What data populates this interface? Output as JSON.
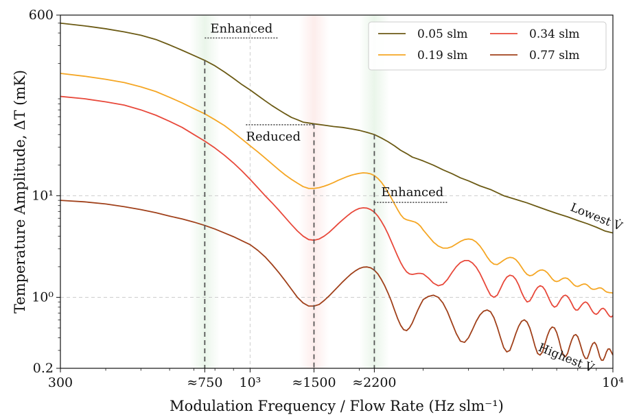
{
  "chart_data": {
    "type": "line",
    "title": "",
    "xlabel": "Modulation Frequency / Flow Rate (Hz slm⁻¹)",
    "ylabel": "Temperature Amplitude, ΔT (mK)",
    "xscale": "log",
    "yscale": "log",
    "xlim": [
      300,
      10000
    ],
    "ylim": [
      0.2,
      600
    ],
    "xticks": [
      {
        "value": 300,
        "label": "300"
      },
      {
        "value": 750,
        "label": "≈750"
      },
      {
        "value": 1000,
        "label": "10³"
      },
      {
        "value": 1500,
        "label": "≈1500"
      },
      {
        "value": 2200,
        "label": "≈2200"
      },
      {
        "value": 10000,
        "label": "10⁴"
      }
    ],
    "yticks": [
      {
        "value": 0.2,
        "label": "0.2"
      },
      {
        "value": 1,
        "label": "10⁰"
      },
      {
        "value": 10,
        "label": "10¹"
      },
      {
        "value": 600,
        "label": "600"
      }
    ],
    "grid": true,
    "legend_position": "top-right",
    "series": [
      {
        "name": "0.05 slm",
        "color": "#6b5a14",
        "x": [
          300,
          350,
          400,
          450,
          500,
          550,
          600,
          650,
          700,
          750,
          800,
          850,
          900,
          950,
          1000,
          1050,
          1100,
          1150,
          1200,
          1250,
          1300,
          1350,
          1400,
          1450,
          1500,
          1600,
          1700,
          1800,
          1900,
          2000,
          2100,
          2200,
          2300,
          2400,
          2500,
          2600,
          2700,
          2800,
          2900,
          3000,
          3200,
          3400,
          3600,
          3800,
          4000,
          4300,
          4600,
          5000,
          5400,
          5800,
          6200,
          6600,
          7000,
          7500,
          8000,
          8500,
          9000,
          9500,
          10000
        ],
        "y": [
          500,
          470,
          440,
          410,
          380,
          345,
          305,
          270,
          240,
          215,
          190,
          165,
          143,
          124,
          110,
          97,
          86,
          77,
          70,
          64,
          59,
          56,
          53,
          52,
          51,
          49.5,
          48,
          47,
          45.5,
          44,
          42,
          40,
          37,
          34,
          31,
          28,
          26,
          24,
          23,
          22,
          20,
          18,
          16.5,
          15,
          14,
          12.5,
          11.5,
          10,
          9.2,
          8.5,
          7.8,
          7.2,
          6.7,
          6.2,
          5.7,
          5.3,
          4.9,
          4.5,
          4.3
        ]
      },
      {
        "name": "0.19 slm",
        "color": "#f5a623",
        "x": [
          300,
          350,
          400,
          450,
          500,
          550,
          600,
          650,
          700,
          750,
          800,
          850,
          900,
          950,
          1000,
          1050,
          1100,
          1150,
          1200,
          1250,
          1300,
          1350,
          1400,
          1450,
          1500,
          1550,
          1600,
          1650,
          1700,
          1750,
          1800,
          1850,
          1900,
          1950,
          2000,
          2050,
          2100,
          2150,
          2200,
          2250,
          2300,
          2350,
          2400,
          2450,
          2500,
          2550,
          2600,
          2650,
          2700,
          2750,
          2800,
          2850,
          2900,
          2950,
          3000,
          3100,
          3200,
          3300,
          3400,
          3500,
          3600,
          3700,
          3800,
          3900,
          4000,
          4100,
          4200,
          4300,
          4400,
          4500,
          4600,
          4700,
          4800,
          4900,
          5000,
          5100,
          5200,
          5300,
          5400,
          5500,
          5600,
          5700,
          5800,
          5900,
          6000,
          6100,
          6200,
          6300,
          6400,
          6500,
          6600,
          6700,
          6800,
          6900,
          7000,
          7100,
          7200,
          7300,
          7400,
          7500,
          7600,
          7700,
          7800,
          7900,
          8000,
          8100,
          8200,
          8300,
          8400,
          8500,
          8600,
          8700,
          8800,
          8900,
          9000,
          9100,
          9200,
          9300,
          9400,
          9500,
          9600,
          9700,
          9800,
          9900,
          10000
        ],
        "y": [
          160,
          150,
          140,
          130,
          118,
          106,
          93,
          82,
          72,
          64,
          56,
          49,
          42,
          36,
          31,
          27,
          23.5,
          20.5,
          18,
          16,
          14.5,
          13.3,
          12.3,
          11.8,
          11.8,
          12.0,
          12.4,
          12.9,
          13.5,
          14.2,
          14.8,
          15.4,
          15.9,
          16.3,
          16.6,
          16.8,
          16.7,
          16.4,
          15.8,
          14.8,
          13.6,
          12.2,
          10.8,
          9.5,
          8.3,
          7.3,
          6.5,
          6.0,
          5.8,
          5.7,
          5.6,
          5.5,
          5.3,
          5.0,
          4.6,
          4.0,
          3.5,
          3.2,
          3.05,
          3.05,
          3.15,
          3.35,
          3.55,
          3.7,
          3.75,
          3.7,
          3.5,
          3.2,
          2.85,
          2.5,
          2.25,
          2.12,
          2.1,
          2.2,
          2.32,
          2.42,
          2.47,
          2.45,
          2.35,
          2.18,
          1.98,
          1.8,
          1.68,
          1.63,
          1.65,
          1.72,
          1.8,
          1.85,
          1.86,
          1.82,
          1.74,
          1.63,
          1.52,
          1.45,
          1.43,
          1.45,
          1.5,
          1.54,
          1.55,
          1.53,
          1.47,
          1.4,
          1.33,
          1.29,
          1.28,
          1.3,
          1.33,
          1.35,
          1.35,
          1.32,
          1.27,
          1.22,
          1.2,
          1.2,
          1.21,
          1.23,
          1.24,
          1.23,
          1.2,
          1.16,
          1.13,
          1.12,
          1.11,
          1.11,
          1.1
        ]
      },
      {
        "name": "0.34 slm",
        "color": "#e8483a",
        "x": [
          300,
          350,
          400,
          450,
          500,
          550,
          600,
          650,
          700,
          750,
          800,
          850,
          900,
          950,
          1000,
          1050,
          1100,
          1150,
          1200,
          1250,
          1300,
          1350,
          1400,
          1450,
          1500,
          1550,
          1600,
          1650,
          1700,
          1750,
          1800,
          1850,
          1900,
          1950,
          2000,
          2050,
          2100,
          2150,
          2200,
          2250,
          2300,
          2350,
          2400,
          2450,
          2500,
          2550,
          2600,
          2650,
          2700,
          2750,
          2800,
          2850,
          2900,
          2950,
          3000,
          3100,
          3200,
          3300,
          3400,
          3500,
          3600,
          3700,
          3800,
          3900,
          4000,
          4100,
          4200,
          4300,
          4400,
          4500,
          4600,
          4700,
          4800,
          4900,
          5000,
          5100,
          5200,
          5300,
          5400,
          5500,
          5600,
          5700,
          5800,
          5900,
          6000,
          6100,
          6200,
          6300,
          6400,
          6500,
          6600,
          6700,
          6800,
          6900,
          7000,
          7100,
          7200,
          7300,
          7400,
          7500,
          7600,
          7700,
          7800,
          7900,
          8000,
          8100,
          8200,
          8300,
          8400,
          8500,
          8600,
          8700,
          8800,
          8900,
          9000,
          9100,
          9200,
          9300,
          9400,
          9500,
          9600,
          9700,
          9800,
          9900,
          10000
        ],
        "y": [
          95,
          90,
          84,
          78,
          70,
          62,
          54,
          47,
          40,
          34.5,
          29.5,
          25,
          21,
          17.5,
          14.5,
          12,
          10,
          8.5,
          7.2,
          6.1,
          5.2,
          4.5,
          4.0,
          3.7,
          3.65,
          3.75,
          4.0,
          4.35,
          4.8,
          5.3,
          5.8,
          6.3,
          6.8,
          7.2,
          7.5,
          7.6,
          7.55,
          7.3,
          6.9,
          6.3,
          5.6,
          4.9,
          4.2,
          3.55,
          3.0,
          2.55,
          2.2,
          1.95,
          1.78,
          1.7,
          1.68,
          1.7,
          1.72,
          1.72,
          1.7,
          1.55,
          1.38,
          1.3,
          1.34,
          1.5,
          1.75,
          2.0,
          2.2,
          2.3,
          2.3,
          2.18,
          1.98,
          1.72,
          1.45,
          1.22,
          1.05,
          1.0,
          1.05,
          1.22,
          1.42,
          1.58,
          1.65,
          1.62,
          1.5,
          1.32,
          1.12,
          0.98,
          0.9,
          0.92,
          1.02,
          1.15,
          1.25,
          1.3,
          1.27,
          1.18,
          1.05,
          0.93,
          0.84,
          0.8,
          0.82,
          0.89,
          0.97,
          1.03,
          1.05,
          1.02,
          0.95,
          0.87,
          0.79,
          0.75,
          0.75,
          0.79,
          0.84,
          0.88,
          0.9,
          0.88,
          0.83,
          0.77,
          0.72,
          0.69,
          0.68,
          0.7,
          0.74,
          0.77,
          0.78,
          0.76,
          0.72,
          0.68,
          0.65,
          0.64,
          0.66
        ]
      },
      {
        "name": "0.77 slm",
        "color": "#a0401a",
        "x": [
          300,
          350,
          400,
          450,
          500,
          550,
          600,
          650,
          700,
          750,
          800,
          850,
          900,
          950,
          1000,
          1050,
          1100,
          1150,
          1200,
          1250,
          1300,
          1350,
          1400,
          1450,
          1500,
          1550,
          1600,
          1650,
          1700,
          1750,
          1800,
          1850,
          1900,
          1950,
          2000,
          2050,
          2100,
          2150,
          2200,
          2250,
          2300,
          2350,
          2400,
          2450,
          2500,
          2550,
          2600,
          2650,
          2700,
          2750,
          2800,
          2850,
          2900,
          2950,
          3000,
          3100,
          3200,
          3300,
          3400,
          3500,
          3600,
          3700,
          3800,
          3900,
          4000,
          4100,
          4200,
          4300,
          4400,
          4500,
          4600,
          4700,
          4800,
          4900,
          5000,
          5100,
          5200,
          5300,
          5400,
          5500,
          5600,
          5700,
          5800,
          5900,
          6000,
          6100,
          6200,
          6300,
          6400,
          6500,
          6600,
          6700,
          6800,
          6900,
          7000,
          7100,
          7200,
          7300,
          7400,
          7500,
          7600,
          7700,
          7800,
          7900,
          8000,
          8100,
          8200,
          8300,
          8400,
          8500,
          8600,
          8700,
          8800,
          8900,
          9000,
          9100,
          9200,
          9300,
          9400,
          9500,
          9600,
          9700,
          9800,
          9900,
          10000
        ],
        "y": [
          9.0,
          8.7,
          8.3,
          7.8,
          7.3,
          6.8,
          6.3,
          5.9,
          5.5,
          5.1,
          4.7,
          4.3,
          3.95,
          3.6,
          3.3,
          2.9,
          2.5,
          2.1,
          1.75,
          1.45,
          1.2,
          1.0,
          0.88,
          0.82,
          0.82,
          0.85,
          0.93,
          1.03,
          1.15,
          1.28,
          1.42,
          1.56,
          1.7,
          1.82,
          1.92,
          1.98,
          1.99,
          1.95,
          1.85,
          1.7,
          1.5,
          1.3,
          1.1,
          0.92,
          0.75,
          0.62,
          0.53,
          0.48,
          0.47,
          0.5,
          0.56,
          0.65,
          0.75,
          0.85,
          0.95,
          1.02,
          1.05,
          1.0,
          0.88,
          0.72,
          0.56,
          0.44,
          0.37,
          0.36,
          0.4,
          0.48,
          0.58,
          0.67,
          0.73,
          0.75,
          0.72,
          0.63,
          0.51,
          0.4,
          0.32,
          0.29,
          0.3,
          0.36,
          0.44,
          0.52,
          0.58,
          0.6,
          0.57,
          0.5,
          0.41,
          0.33,
          0.28,
          0.27,
          0.29,
          0.35,
          0.42,
          0.48,
          0.51,
          0.5,
          0.45,
          0.38,
          0.31,
          0.27,
          0.26,
          0.28,
          0.33,
          0.38,
          0.42,
          0.43,
          0.41,
          0.36,
          0.31,
          0.27,
          0.25,
          0.25,
          0.28,
          0.32,
          0.35,
          0.36,
          0.34,
          0.3,
          0.26,
          0.24,
          0.24,
          0.26,
          0.29,
          0.31,
          0.31,
          0.29,
          0.27
        ]
      }
    ],
    "vlines": [
      {
        "x": 750,
        "band_color": "#2ca02c"
      },
      {
        "x": 1500,
        "band_color": "#e8483a"
      },
      {
        "x": 2200,
        "band_color": "#2ca02c"
      }
    ],
    "annotations": [
      {
        "text": "Enhanced",
        "x": 750,
        "y": 380
      },
      {
        "text": "Reduced",
        "x": 1000,
        "y": 50
      },
      {
        "text": "Enhanced",
        "x": 2200,
        "y": 9
      }
    ],
    "curve_labels": [
      {
        "text": "Lowest V̇",
        "x": 7600,
        "y": 7.2,
        "angle": 22
      },
      {
        "text": "Highest V̇",
        "x": 6200,
        "y": 0.3,
        "angle": 22
      }
    ]
  }
}
